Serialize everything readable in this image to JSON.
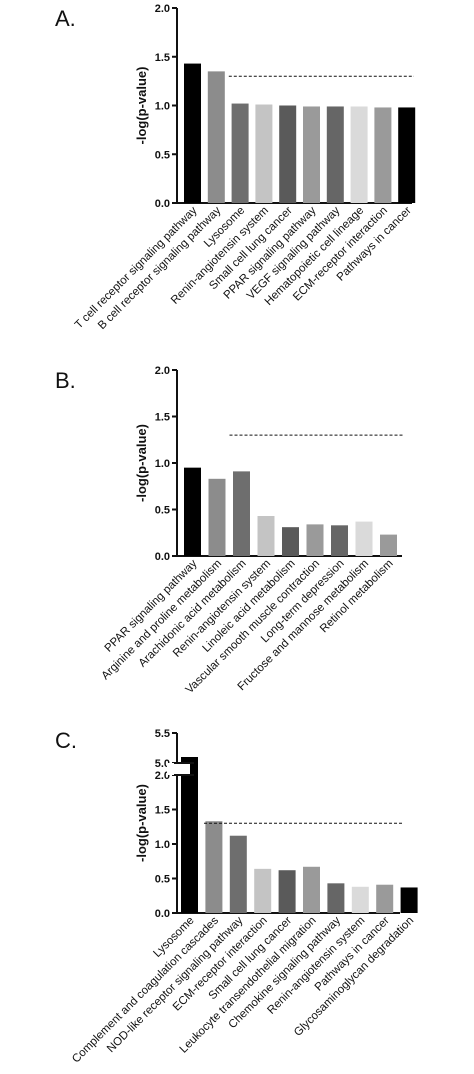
{
  "chart_data": [
    {
      "type": "bar",
      "panel_label": "A.",
      "ylabel": "-log(p-value)",
      "ylim": [
        0,
        2.0
      ],
      "yticks": [
        "0.0",
        "0.5",
        "1.0",
        "1.5",
        "2.0"
      ],
      "yticks_values": [
        0,
        0.5,
        1.0,
        1.5,
        2.0
      ],
      "threshold": 1.3,
      "categories": [
        "T cell receptor signaling pathway",
        "B cell receptor signaling pathway",
        "Lysosome",
        "Renin-angiotensin system",
        "Small cell lung cancer",
        "PPAR signaling pathway",
        "VEGF signaling pathway",
        "Hematopoietic cell lineage",
        "ECM-receptor interaction",
        "Pathways in cancer"
      ],
      "values": [
        1.43,
        1.35,
        1.02,
        1.01,
        1.0,
        0.99,
        0.99,
        0.99,
        0.98,
        0.98
      ],
      "colors": [
        "#000000",
        "#8c8c8c",
        "#6e6e6e",
        "#c4c4c4",
        "#5a5a5a",
        "#9a9a9a",
        "#666666",
        "#dadada",
        "#9a9a9a",
        "#000000"
      ]
    },
    {
      "type": "bar",
      "panel_label": "B.",
      "ylabel": "-log(p-value)",
      "ylim": [
        0,
        2.0
      ],
      "yticks": [
        "0.0",
        "0.5",
        "1.0",
        "1.5",
        "2.0"
      ],
      "yticks_values": [
        0,
        0.5,
        1.0,
        1.5,
        2.0
      ],
      "threshold": 1.3,
      "categories": [
        "PPAR signaling pathway",
        "Arginine and proline metabolism",
        "Arachidonic acid metabolism",
        "Renin-angiotensin system",
        "Linoleic acid metabolism",
        "Vascular smooth muscle contraction",
        "Long-term depression",
        "Fructose and mannose metabolism",
        "Retinol metabolism"
      ],
      "values": [
        0.95,
        0.83,
        0.91,
        0.43,
        0.31,
        0.34,
        0.33,
        0.37,
        0.23
      ],
      "colors": [
        "#000000",
        "#8c8c8c",
        "#6e6e6e",
        "#c4c4c4",
        "#5a5a5a",
        "#9a9a9a",
        "#666666",
        "#dadada",
        "#9a9a9a"
      ]
    },
    {
      "type": "bar",
      "panel_label": "C.",
      "ylabel": "-log(p-value)",
      "ylim": [
        0,
        5.5
      ],
      "axis_break": [
        2.0,
        5.0
      ],
      "yticks": [
        "0.0",
        "0.5",
        "1.0",
        "1.5",
        "2.0",
        "5.0",
        "5.5"
      ],
      "yticks_values": [
        0,
        0.5,
        1.0,
        1.5,
        2.0,
        5.0,
        5.5
      ],
      "threshold": 1.3,
      "categories": [
        "Lysosome",
        "Complement and coagulation cascades",
        "NOD-like receptor signaling pathway",
        "ECM-receptor interaction",
        "Small cell lung cancer",
        "Leukocyte transendothelial migration",
        "Chemokine signaling pathway",
        "Renin-angiotensin system",
        "Pathways in cancer",
        "Glycosaminoglycan degradation"
      ],
      "values": [
        5.1,
        1.33,
        1.12,
        0.64,
        0.62,
        0.67,
        0.43,
        0.38,
        0.41,
        0.37
      ],
      "colors": [
        "#000000",
        "#8c8c8c",
        "#6e6e6e",
        "#c4c4c4",
        "#5a5a5a",
        "#9a9a9a",
        "#666666",
        "#dadada",
        "#9a9a9a",
        "#000000"
      ]
    }
  ]
}
